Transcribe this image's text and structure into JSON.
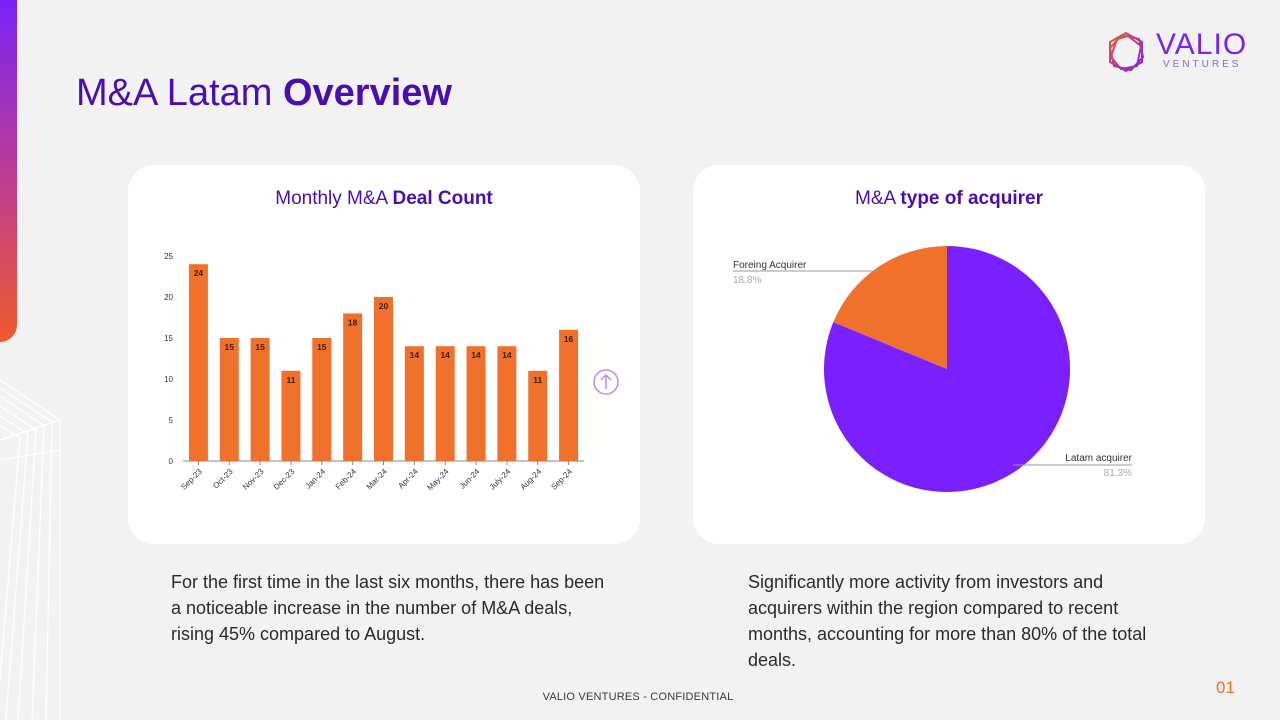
{
  "brand": {
    "name": "VALIO",
    "sub": "VENTURES",
    "colors": {
      "purple": "#7a1fff",
      "orange": "#ef712b",
      "title": "#4a0eb0"
    }
  },
  "page": {
    "title_light": "M&A Latam",
    "title_bold": "Overview",
    "footer": "VALIO VENTURES - CONFIDENTIAL",
    "page_number": "01"
  },
  "left_card": {
    "title_light": "Monthly M&A",
    "title_bold": "Deal Count",
    "description": "For the first time in the last six months, there has been a noticeable increase in the number of M&A deals, rising 45% compared to August."
  },
  "right_card": {
    "title_light": "M&A",
    "title_bold": "type of acquirer",
    "description": "Significantly more activity from investors and acquirers within the region compared to recent months, accounting for more than 80% of the total deals."
  },
  "icons": {
    "scroll": "arrow-up-circle-icon",
    "logo": "hexagon-logo-icon"
  },
  "chart_data": [
    {
      "type": "bar",
      "title": "Monthly M&A Deal Count",
      "categories": [
        "Sep-23",
        "Oct-23",
        "Nov-23",
        "Dec-23",
        "Jan-24",
        "Feb-24",
        "Mar-24",
        "Apr-24",
        "May-24",
        "Jun-24",
        "July-24",
        "Aug-24",
        "Sep-24"
      ],
      "values": [
        24,
        15,
        15,
        11,
        15,
        18,
        20,
        14,
        14,
        14,
        14,
        11,
        16
      ],
      "yticks": [
        0,
        5,
        10,
        15,
        20,
        25
      ],
      "ylim": [
        0,
        25
      ],
      "grid": false,
      "color": "#ef712b"
    },
    {
      "type": "pie",
      "title": "M&A type of acquirer",
      "slices": [
        {
          "label": "Latam acquirer",
          "value": 81.3,
          "value_label": "81.3%",
          "color": "#7a1fff"
        },
        {
          "label": "Foreing Acquirer",
          "value": 18.8,
          "value_label": "18.8%",
          "color": "#ef712b"
        }
      ]
    }
  ]
}
